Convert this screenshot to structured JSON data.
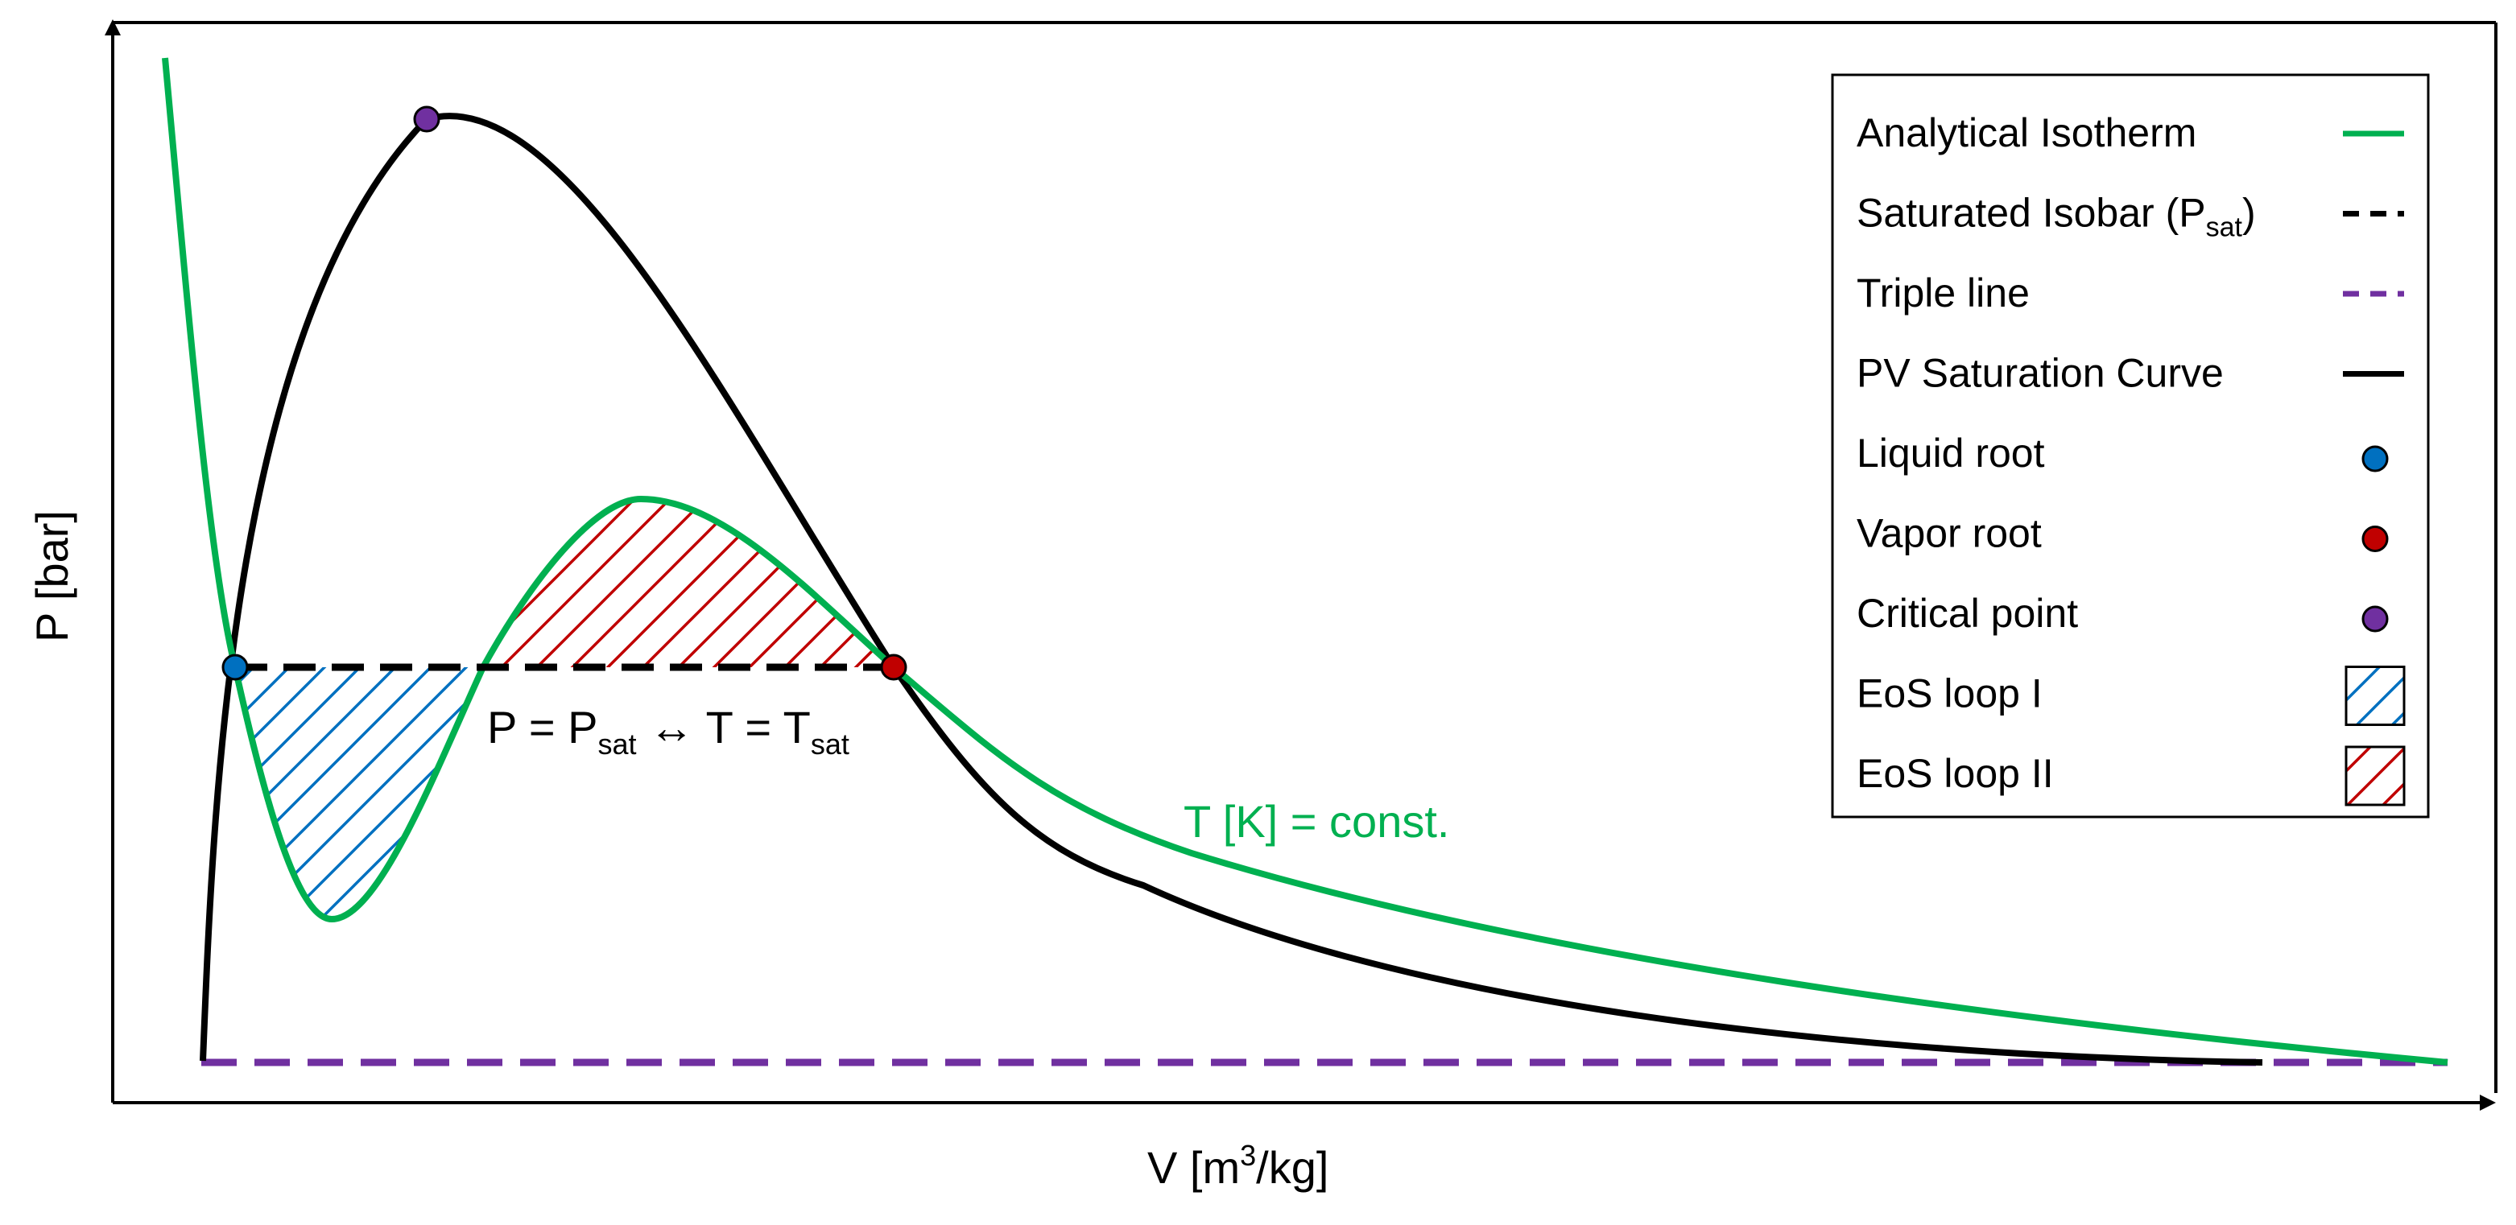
{
  "axes": {
    "x_label": "V [m",
    "x_label_sup": "3",
    "x_label_end": "/kg]",
    "y_label": "P [bar]"
  },
  "annotations": {
    "psat_eq_a": "P = P",
    "psat_eq_a_sub": "sat",
    "psat_eq_b": " ↔ T = T",
    "psat_eq_b_sub": "sat",
    "isotherm_label": "T [K] = const."
  },
  "legend": {
    "items": [
      {
        "label": "Analytical Isotherm",
        "sub": "",
        "suffix": "",
        "swatch": "line",
        "color": "#00b050",
        "dash": "solid"
      },
      {
        "label": "Saturated Isobar (P",
        "sub": "sat",
        "suffix": ")",
        "swatch": "line",
        "color": "#000000",
        "dash": "dashed"
      },
      {
        "label": "Triple line",
        "sub": "",
        "suffix": "",
        "swatch": "line",
        "color": "#7030a0",
        "dash": "dashed"
      },
      {
        "label": "PV Saturation Curve",
        "sub": "",
        "suffix": "",
        "swatch": "line",
        "color": "#000000",
        "dash": "solid"
      },
      {
        "label": "Liquid root",
        "sub": "",
        "suffix": "",
        "swatch": "marker",
        "color": "#0070c0",
        "dash": ""
      },
      {
        "label": "Vapor root",
        "sub": "",
        "suffix": "",
        "swatch": "marker",
        "color": "#c00000",
        "dash": ""
      },
      {
        "label": "Critical point",
        "sub": "",
        "suffix": "",
        "swatch": "marker",
        "color": "#7030a0",
        "dash": ""
      },
      {
        "label": "EoS loop I",
        "sub": "",
        "suffix": "",
        "swatch": "hatch",
        "color": "#0070c0",
        "dash": ""
      },
      {
        "label": "EoS loop II",
        "sub": "",
        "suffix": "",
        "swatch": "hatch",
        "color": "#c00000",
        "dash": ""
      }
    ]
  },
  "colors": {
    "isotherm": "#00b050",
    "saturation_curve": "#000000",
    "triple_line": "#7030a0",
    "liquid_root": "#0070c0",
    "vapor_root": "#c00000",
    "critical_point": "#7030a0",
    "loop_one": "#0070c0",
    "loop_two": "#c00000"
  }
}
